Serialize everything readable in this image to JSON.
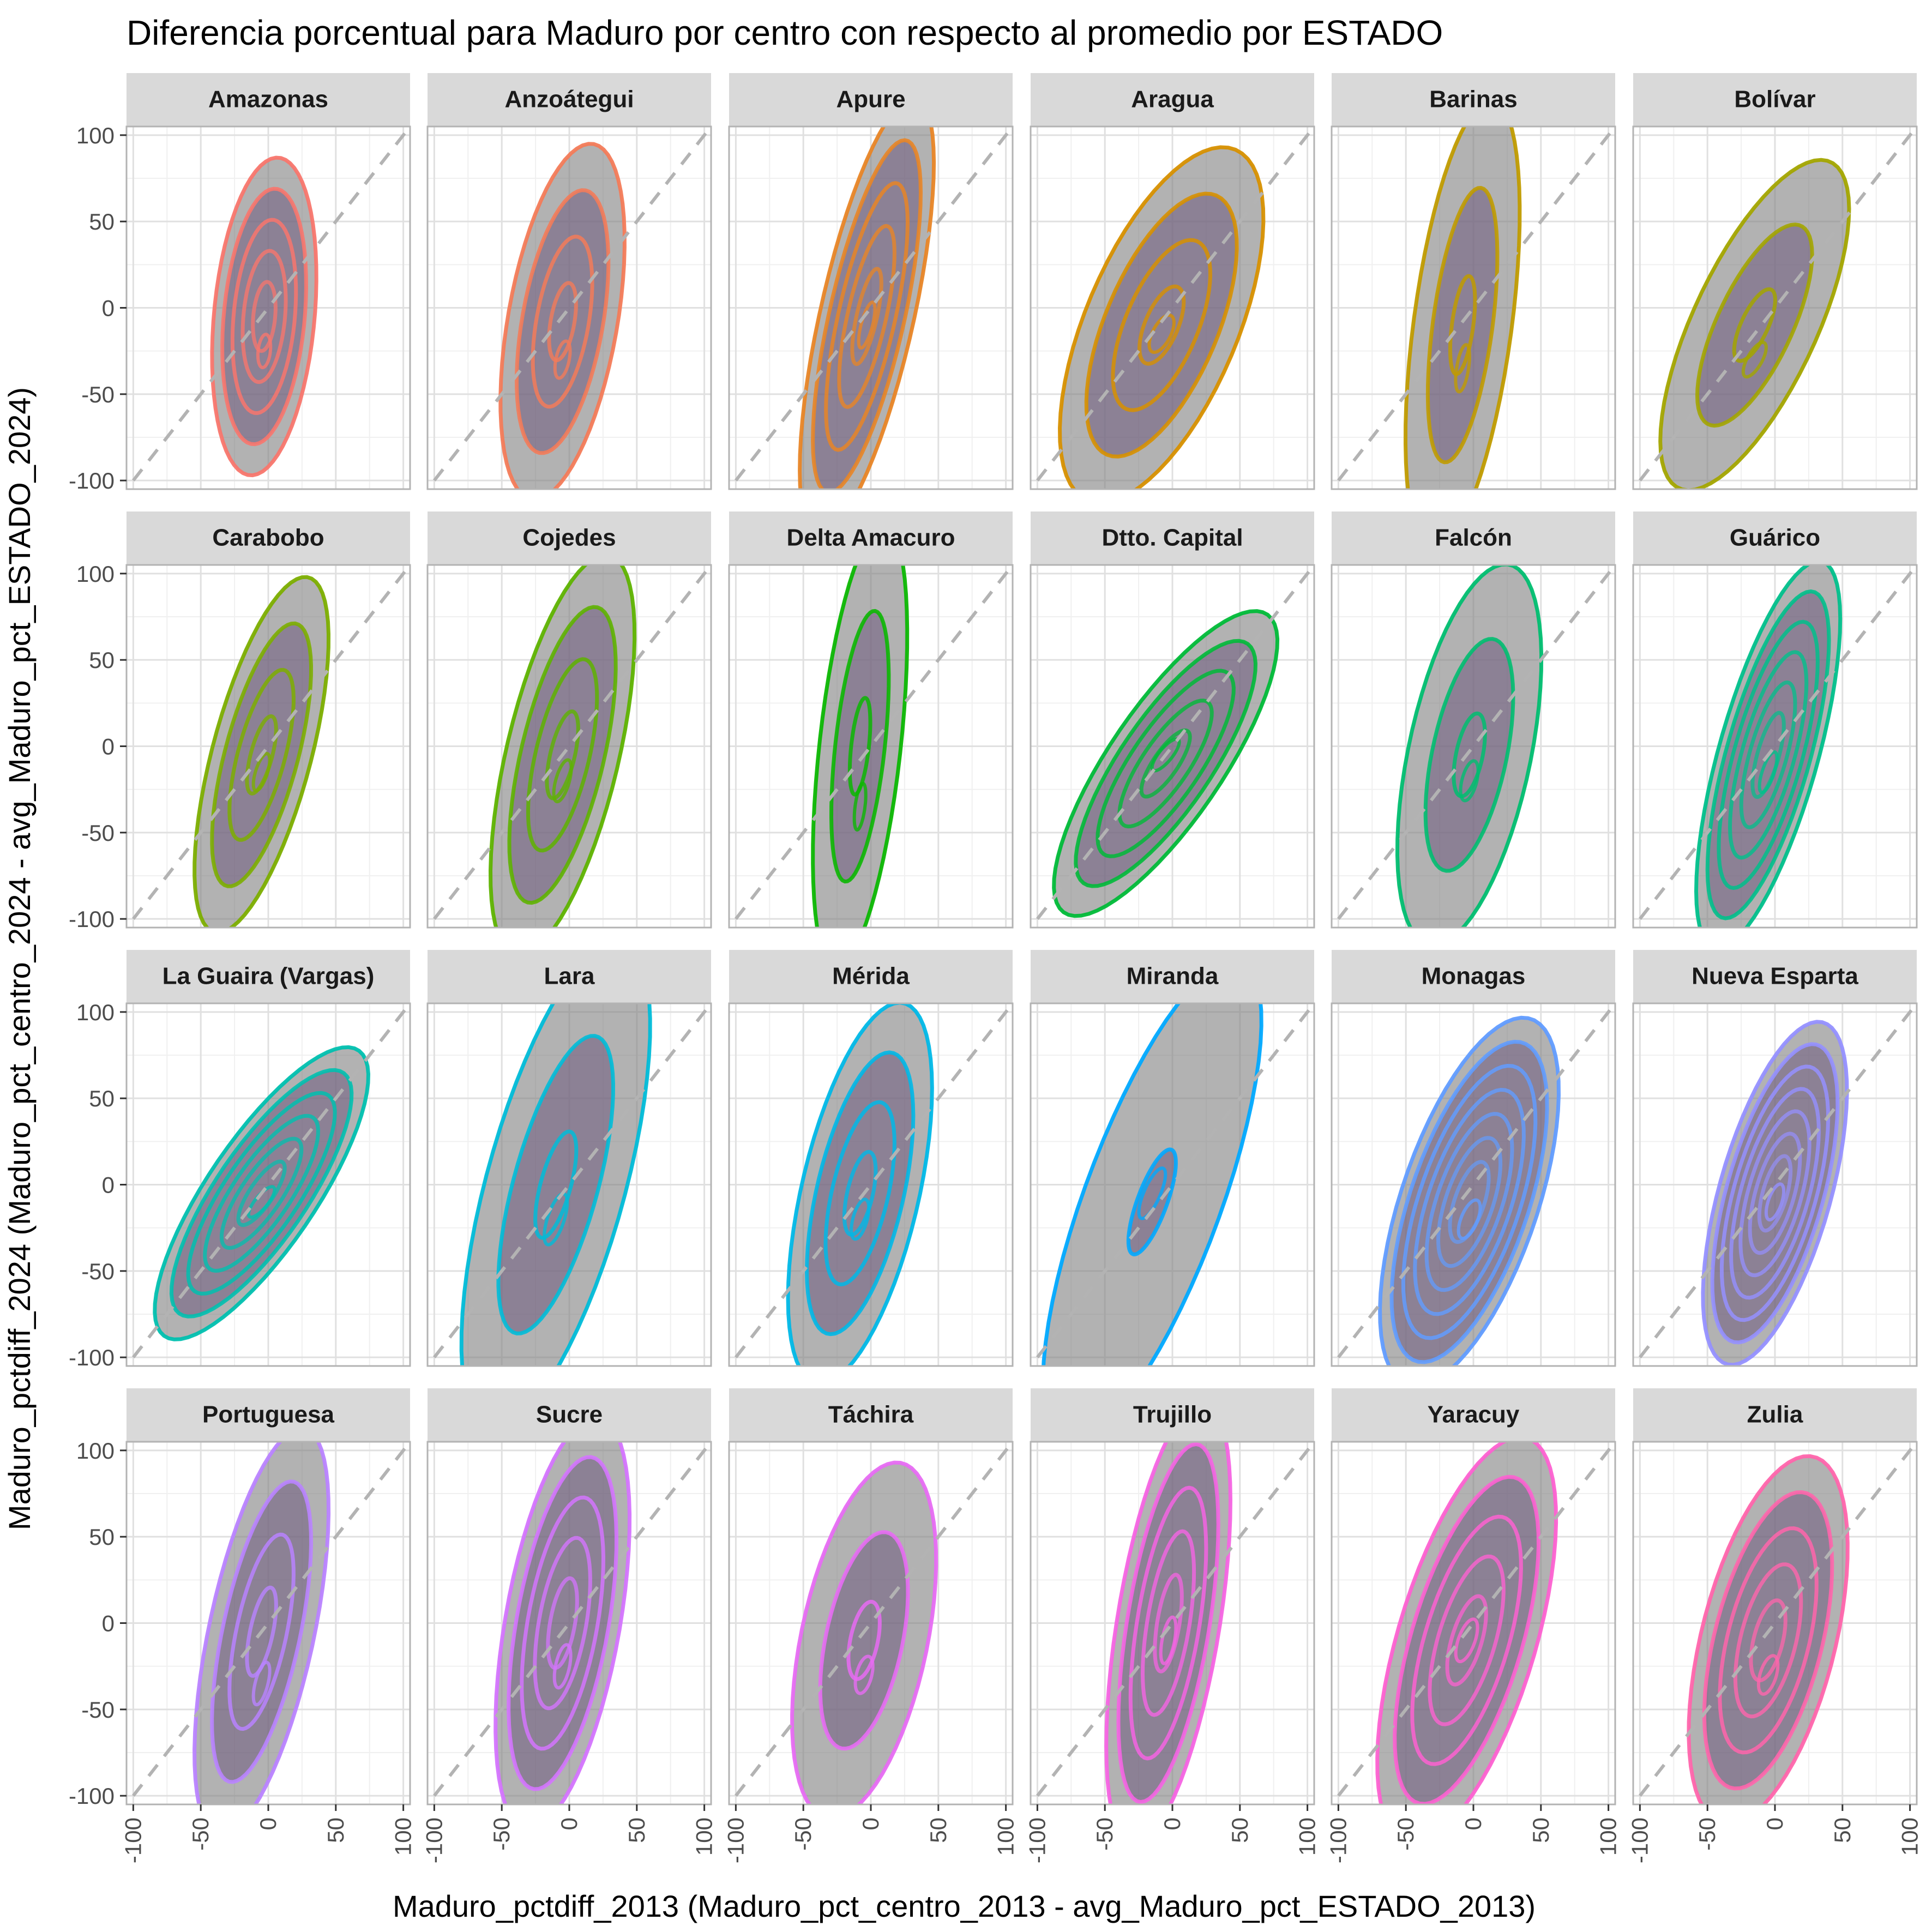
{
  "chart_data": {
    "type": "density-contour-facets",
    "title": "Diferencia porcentual para Maduro por centro con respecto al promedio por ESTADO",
    "xlabel": "Maduro_pctdiff_2013 (Maduro_pct_centro_2013 - avg_Maduro_pct_ESTADO_2013)",
    "ylabel": "Maduro_pctdiff_2024 (Maduro_pct_centro_2024 - avg_Maduro_pct_ESTADO_2024)",
    "xlim": [
      -105,
      105
    ],
    "ylim": [
      -105,
      105
    ],
    "x_ticks": [
      -100,
      -50,
      0,
      50,
      100
    ],
    "y_ticks": [
      -100,
      -50,
      0,
      50,
      100
    ],
    "x_tick_labels": [
      "-100",
      "-50",
      "0",
      "50",
      "100"
    ],
    "y_tick_labels": [
      "-100",
      "-50",
      "0",
      "50",
      "100"
    ],
    "reference_line": {
      "style": "dashed",
      "slope": 1,
      "intercept": 0,
      "color": "#b3b3b3"
    },
    "grid": true,
    "fill_color": "#7f7f7f",
    "facets": [
      {
        "name": "Amazonas",
        "color": "#F8766D",
        "cx": -3,
        "cy": -5,
        "sx": 21,
        "sy": 50,
        "rho": 0.25,
        "levels": 5,
        "core": -25
      },
      {
        "name": "Anzoátegui",
        "color": "#F37B59",
        "cx": -5,
        "cy": -8,
        "sx": 25,
        "sy": 56,
        "rho": 0.45,
        "levels": 4,
        "core": -30
      },
      {
        "name": "Apure",
        "color": "#E88526",
        "cx": -3,
        "cy": -5,
        "sx": 27,
        "sy": 69,
        "rho": 0.7,
        "levels": 5,
        "core": -10
      },
      {
        "name": "Aragua",
        "color": "#D79000",
        "cx": -8,
        "cy": -10,
        "sx": 41,
        "sy": 56,
        "rho": 0.6,
        "levels": 4,
        "core": -15
      },
      {
        "name": "Barinas",
        "color": "#C09B00",
        "cx": -8,
        "cy": -10,
        "sx": 23,
        "sy": 71,
        "rho": 0.5,
        "levels": 3,
        "core": -35
      },
      {
        "name": "Bolívar",
        "color": "#A3A500",
        "cx": -15,
        "cy": -10,
        "sx": 38,
        "sy": 52,
        "rho": 0.7,
        "levels": 3,
        "core": -30
      },
      {
        "name": "Carabobo",
        "color": "#7CAE00",
        "cx": -5,
        "cy": -5,
        "sx": 27,
        "sy": 56,
        "rho": 0.65,
        "levels": 4,
        "core": -15
      },
      {
        "name": "Cojedes",
        "color": "#5EB300",
        "cx": -5,
        "cy": -5,
        "sx": 29,
        "sy": 63,
        "rho": 0.6,
        "levels": 4,
        "core": -20
      },
      {
        "name": "Delta Amacuro",
        "color": "#0BB702",
        "cx": -8,
        "cy": 0,
        "sx": 19,
        "sy": 70,
        "rho": 0.5,
        "levels": 3,
        "core": -35
      },
      {
        "name": "Dtto. Capital",
        "color": "#00BA38",
        "cx": -5,
        "cy": -10,
        "sx": 45,
        "sy": 48,
        "rho": 0.8,
        "levels": 5,
        "core": -5
      },
      {
        "name": "Falcón",
        "color": "#00BE70",
        "cx": -3,
        "cy": -5,
        "sx": 29,
        "sy": 60,
        "rho": 0.5,
        "levels": 3,
        "core": -20
      },
      {
        "name": "Guárico",
        "color": "#00C08B",
        "cx": -5,
        "cy": -5,
        "sx": 29,
        "sy": 61,
        "rho": 0.7,
        "levels": 6,
        "core": -15
      },
      {
        "name": "La Guaira (Vargas)",
        "color": "#00C0AF",
        "cx": -5,
        "cy": -5,
        "sx": 43,
        "sy": 46,
        "rho": 0.8,
        "levels": 6,
        "core": -10
      },
      {
        "name": "Lara",
        "color": "#00BCD8",
        "cx": -10,
        "cy": 0,
        "sx": 38,
        "sy": 77,
        "rho": 0.65,
        "levels": 3,
        "core": -20
      },
      {
        "name": "Mérida",
        "color": "#00B8E7",
        "cx": -8,
        "cy": -5,
        "sx": 29,
        "sy": 60,
        "rho": 0.55,
        "levels": 4,
        "core": -20
      },
      {
        "name": "Miranda",
        "color": "#00A9FF",
        "cx": -15,
        "cy": -10,
        "sx": 44,
        "sy": 76,
        "rho": 0.75,
        "levels": 2,
        "core": -5
      },
      {
        "name": "Monagas",
        "color": "#619CFF",
        "cx": -3,
        "cy": -10,
        "sx": 36,
        "sy": 58,
        "rho": 0.6,
        "levels": 7,
        "core": -20
      },
      {
        "name": "Nueva Esparta",
        "color": "#9590FF",
        "cx": 0,
        "cy": -5,
        "sx": 29,
        "sy": 54,
        "rho": 0.6,
        "levels": 7,
        "core": -10
      },
      {
        "name": "Portuguesa",
        "color": "#B983FF",
        "cx": -5,
        "cy": -5,
        "sx": 27,
        "sy": 64,
        "rho": 0.6,
        "levels": 4,
        "core": -35
      },
      {
        "name": "Sucre",
        "color": "#D474FE",
        "cx": -5,
        "cy": 0,
        "sx": 27,
        "sy": 65,
        "rho": 0.5,
        "levels": 5,
        "core": -25
      },
      {
        "name": "Táchira",
        "color": "#E76BF3",
        "cx": -5,
        "cy": -10,
        "sx": 29,
        "sy": 56,
        "rho": 0.45,
        "levels": 3,
        "core": -30
      },
      {
        "name": "Trujillo",
        "color": "#F564E3",
        "cx": -3,
        "cy": 0,
        "sx": 25,
        "sy": 70,
        "rho": 0.55,
        "levels": 5,
        "core": -10
      },
      {
        "name": "Yaracuy",
        "color": "#FD61D1",
        "cx": -5,
        "cy": -10,
        "sx": 36,
        "sy": 64,
        "rho": 0.6,
        "levels": 5,
        "core": -10
      },
      {
        "name": "Zulia",
        "color": "#FF65AC",
        "cx": -5,
        "cy": -10,
        "sx": 32,
        "sy": 58,
        "rho": 0.5,
        "levels": 5,
        "core": -30
      }
    ]
  }
}
